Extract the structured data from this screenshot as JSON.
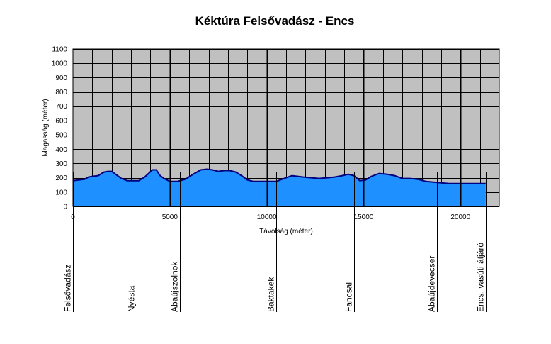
{
  "chart_data": {
    "type": "area",
    "title": "Kéktúra Felsővadász - Encs",
    "xlabel": "Távolság (méter)",
    "ylabel": "Magasság (méter)",
    "xlim": [
      0,
      22000
    ],
    "ylim": [
      0,
      1100
    ],
    "x_ticks": [
      0,
      5000,
      10000,
      15000,
      20000
    ],
    "y_ticks": [
      0,
      100,
      200,
      300,
      400,
      500,
      600,
      700,
      800,
      900,
      1000,
      1100
    ],
    "grid": true,
    "colors": {
      "plot_bg": "#c0c0c0",
      "fill": "#1e90ff",
      "line": "#000080",
      "grid": "#000000"
    },
    "series": [
      {
        "x": [
          0,
          300,
          600,
          800,
          1000,
          1300,
          1600,
          1800,
          2000,
          2200,
          2500,
          2800,
          3100,
          3400,
          3700,
          3900,
          4100,
          4300,
          4500,
          4700,
          5000,
          5400,
          5800,
          6200,
          6600,
          6900,
          7200,
          7500,
          7800,
          8100,
          8400,
          8700,
          9000,
          9300,
          9700,
          10100,
          10500,
          10900,
          11300,
          11600,
          11900,
          12300,
          12700,
          13100,
          13500,
          13900,
          14200,
          14500,
          14800,
          15100,
          15400,
          15800,
          16200,
          16600,
          17000,
          17400,
          17800,
          18200,
          18600,
          19000,
          19400,
          19800,
          20200,
          20600,
          21000,
          21300
        ],
        "values": [
          180,
          185,
          190,
          205,
          210,
          215,
          240,
          245,
          245,
          225,
          195,
          180,
          180,
          180,
          205,
          230,
          255,
          255,
          215,
          195,
          175,
          175,
          190,
          225,
          255,
          260,
          255,
          245,
          250,
          250,
          240,
          215,
          185,
          175,
          175,
          175,
          175,
          195,
          215,
          210,
          205,
          200,
          195,
          200,
          205,
          215,
          225,
          215,
          180,
          185,
          210,
          230,
          225,
          215,
          195,
          195,
          190,
          175,
          170,
          165,
          160,
          160,
          160,
          160,
          160,
          160
        ]
      }
    ],
    "locations": [
      {
        "name": "Felsővadász",
        "x": 0
      },
      {
        "name": "Nyésta",
        "x": 3300
      },
      {
        "name": "Abaújszolnok",
        "x": 5500
      },
      {
        "name": "Baktakék",
        "x": 10500
      },
      {
        "name": "Fancsal",
        "x": 14500
      },
      {
        "name": "Abaújdevecser",
        "x": 18800
      },
      {
        "name": "Encs, vasúti átjáró",
        "x": 21300
      }
    ],
    "village_lines": [
      5000,
      10000,
      15000,
      20000
    ]
  }
}
